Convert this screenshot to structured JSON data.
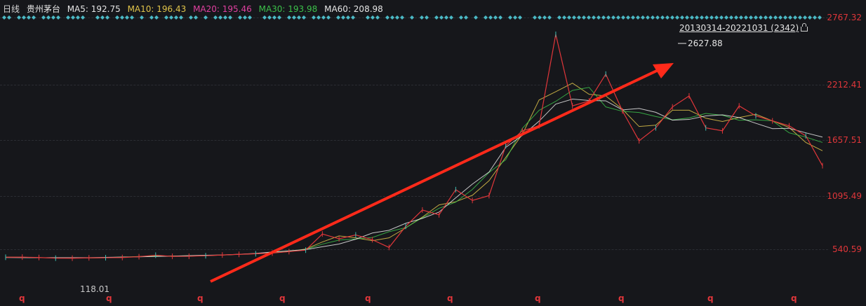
{
  "header": {
    "period": "日线",
    "name": "贵州茅台",
    "ma5": "MA5: 192.75",
    "ma10": "MA10: 196.43",
    "ma20": "MA20: 195.46",
    "ma30": "MA30: 193.98",
    "ma60": "MA60: 208.98"
  },
  "colors": {
    "background": "#16171b",
    "ma5": "#e5e5e5",
    "ma10": "#e0c44a",
    "ma20": "#e040a0",
    "ma30": "#3cc04a",
    "ma60": "#e5e5e5",
    "axis": "#e0363a",
    "arrow": "#ff2a1a",
    "diamond": "#4ab8c4"
  },
  "range_label": "20130314-20221031 (2342)",
  "y_axis": {
    "ticks": [
      "2767.32",
      "2212.41",
      "1657.51",
      "1095.49",
      "540.59"
    ]
  },
  "annotations": {
    "high": "2627.88",
    "low": "118.01"
  },
  "q_marker": "q",
  "chart_data": {
    "type": "line",
    "title": "",
    "xlabel": "",
    "ylabel": "",
    "ylim": [
      0,
      2800
    ],
    "x_range": [
      "20130314",
      "20221031"
    ],
    "bar_count": 2342,
    "high": 2627.88,
    "low": 118.01,
    "series": [
      {
        "values": [
          165,
          170,
          150,
          120,
          118.01,
          135,
          140,
          150,
          190,
          260,
          205,
          210,
          235,
          270,
          300,
          330,
          360,
          430,
          500,
          700,
          650,
          690,
          640,
          560,
          780,
          950,
          900,
          1160,
          1050,
          1100,
          1600,
          1750,
          1800,
          2627.88,
          2000,
          2050,
          2300,
          1950,
          1650,
          1780,
          1990,
          2100,
          1780,
          1750,
          2000,
          1900,
          1850,
          1800,
          1700,
          1400
        ]
      }
    ]
  }
}
